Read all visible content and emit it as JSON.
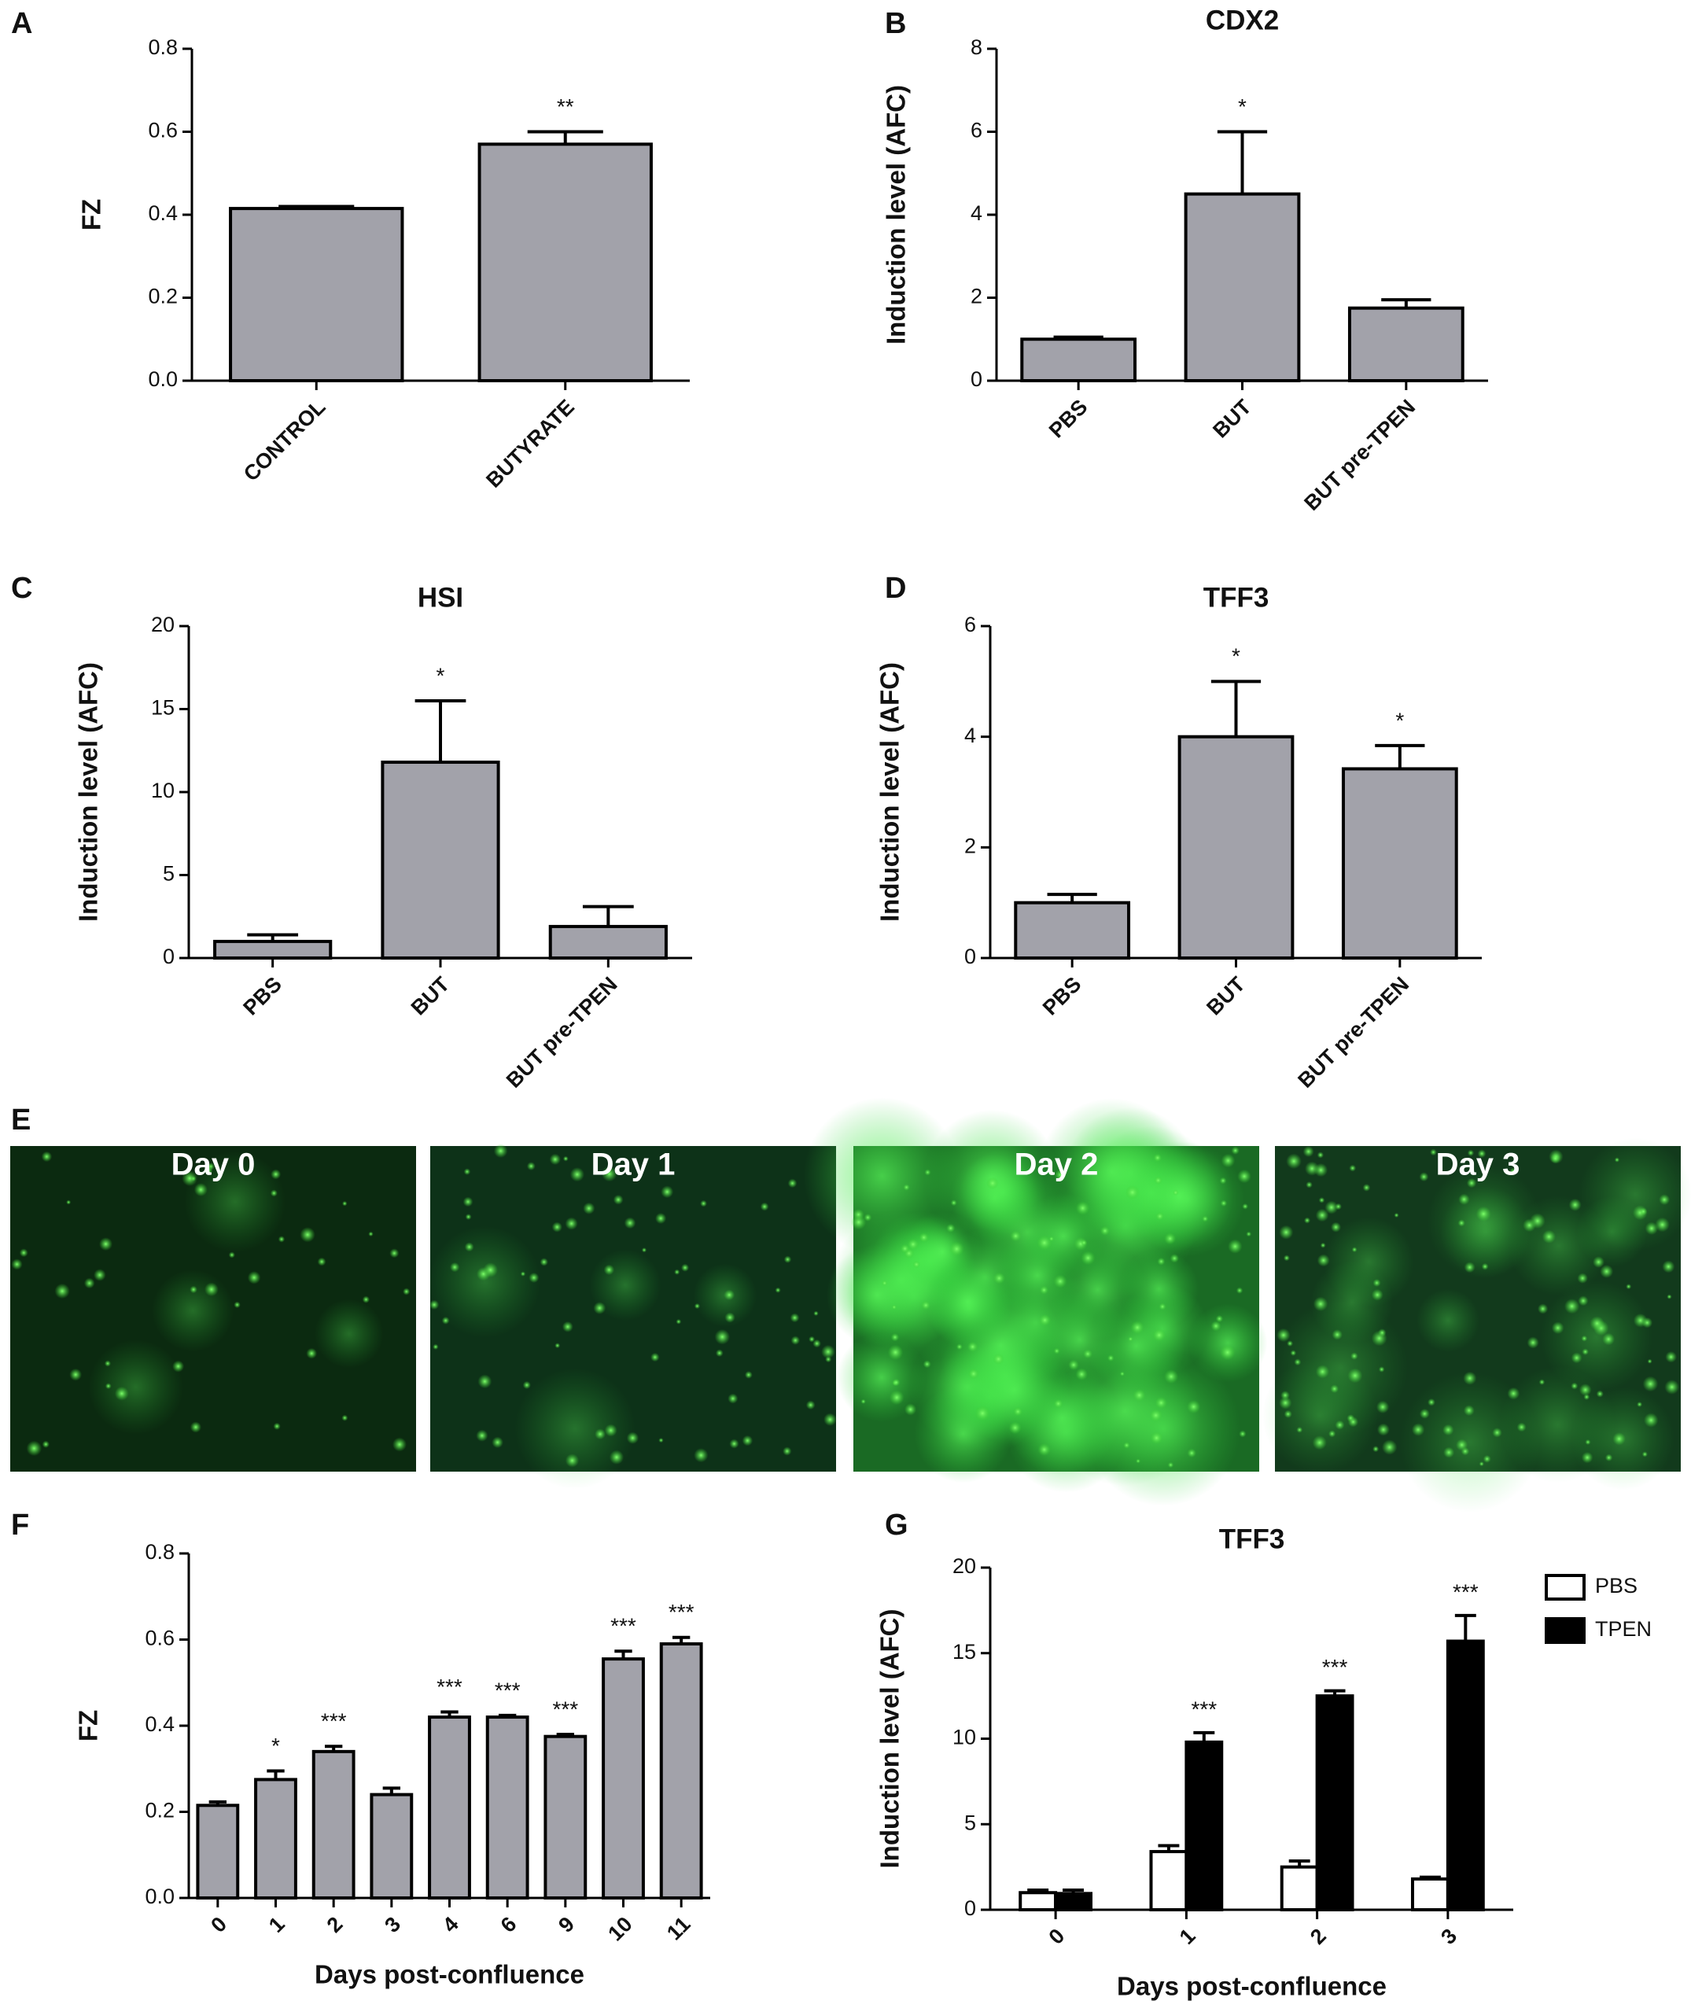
{
  "chart_data": [
    {
      "type": "bar",
      "panel": "A",
      "ylabel": "FZ",
      "categories": [
        "CONTROL",
        "BUTYRATE"
      ],
      "values": [
        0.415,
        0.57
      ],
      "errors": [
        0.005,
        0.03
      ],
      "annotations": [
        null,
        "**"
      ],
      "color": "#a2a2aa",
      "ylim": [
        0,
        0.8
      ],
      "yticks": [
        {
          "value": 0,
          "label": "0.0"
        },
        0.2,
        0.4,
        0.6,
        0.8
      ]
    },
    {
      "type": "bar",
      "panel": "B",
      "title": "CDX2",
      "ylabel": "Induction level (AFC)",
      "categories": [
        "PBS",
        "BUT",
        "BUT pre-TPEN"
      ],
      "values": [
        1.0,
        4.5,
        1.75
      ],
      "errors": [
        0.05,
        1.5,
        0.2
      ],
      "annotations": [
        null,
        "*",
        null
      ],
      "color": "#a2a2aa",
      "ylim": [
        0,
        8
      ],
      "yticks": [
        0,
        2,
        4,
        6,
        8
      ]
    },
    {
      "type": "bar",
      "panel": "C",
      "title": "HSI",
      "ylabel": "Induction level (AFC)",
      "categories": [
        "PBS",
        "BUT",
        "BUT pre-TPEN"
      ],
      "values": [
        1.0,
        11.8,
        1.9
      ],
      "errors": [
        0.4,
        3.7,
        1.2
      ],
      "annotations": [
        null,
        "*",
        null
      ],
      "color": "#a2a2aa",
      "ylim": [
        0,
        20
      ],
      "yticks": [
        0,
        5,
        10,
        15,
        20
      ]
    },
    {
      "type": "bar",
      "panel": "D",
      "title": "TFF3",
      "ylabel": "Induction level (AFC)",
      "categories": [
        "PBS",
        "BUT",
        "BUT pre-TPEN"
      ],
      "values": [
        1.0,
        4.0,
        3.42
      ],
      "errors": [
        0.15,
        1.0,
        0.42
      ],
      "annotations": [
        null,
        "*",
        "*"
      ],
      "color": "#a2a2aa",
      "ylim": [
        0,
        6
      ],
      "yticks": [
        0,
        2,
        4,
        6
      ]
    },
    {
      "type": "bar",
      "panel": "F",
      "ylabel": "FZ",
      "xlabel": "Days post-confluence",
      "categories": [
        "0",
        "1",
        "2",
        "3",
        "4",
        "6",
        "9",
        "10",
        "11"
      ],
      "values": [
        0.215,
        0.275,
        0.34,
        0.24,
        0.42,
        0.42,
        0.375,
        0.555,
        0.59
      ],
      "errors": [
        0.008,
        0.02,
        0.012,
        0.015,
        0.012,
        0.004,
        0.005,
        0.018,
        0.015
      ],
      "annotations": [
        null,
        "*",
        "***",
        null,
        "***",
        "***",
        "***",
        "***",
        "***"
      ],
      "color": "#a2a2aa",
      "ylim": [
        0,
        0.8
      ],
      "yticks": [
        {
          "value": 0,
          "label": "0.0"
        },
        0.2,
        0.4,
        0.6,
        0.8
      ]
    },
    {
      "type": "grouped_bar",
      "panel": "G",
      "title": "TFF3",
      "ylabel": "Induction level (AFC)",
      "xlabel": "Days post-confluence",
      "categories": [
        "0",
        "1",
        "2",
        "3"
      ],
      "series": [
        {
          "name": "PBS",
          "color": "#ffffff",
          "values": [
            1.0,
            3.4,
            2.5,
            1.8
          ],
          "errors": [
            0.15,
            0.35,
            0.35,
            0.1
          ],
          "annotations": [
            null,
            null,
            null,
            null
          ]
        },
        {
          "name": "TPEN",
          "color": "#000000",
          "values": [
            0.95,
            9.8,
            12.5,
            15.7
          ],
          "errors": [
            0.2,
            0.55,
            0.3,
            1.5
          ],
          "annotations": [
            null,
            "***",
            "***",
            "***"
          ]
        }
      ],
      "legend": "right",
      "ylim": [
        0,
        20
      ],
      "yticks": [
        0,
        5,
        10,
        15,
        20
      ]
    }
  ],
  "panel_e": {
    "panel": "E",
    "labels": [
      "Day 0",
      "Day 1",
      "Day 2",
      "Day 3"
    ]
  }
}
